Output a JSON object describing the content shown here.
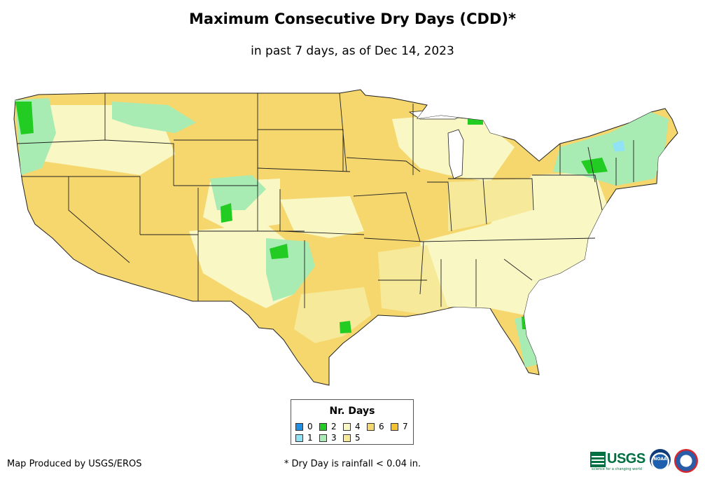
{
  "title": "Maximum Consecutive Dry Days (CDD)*",
  "subtitle": "in past 7 days, as of Dec 14, 2023",
  "legend": {
    "title": "Nr. Days",
    "items": [
      {
        "label": "0",
        "color": "#1e90e6"
      },
      {
        "label": "1",
        "color": "#8fe3f5"
      },
      {
        "label": "2",
        "color": "#22cc22"
      },
      {
        "label": "3",
        "color": "#a8ecb4"
      },
      {
        "label": "4",
        "color": "#f9f7c4"
      },
      {
        "label": "5",
        "color": "#f6e99a"
      },
      {
        "label": "6",
        "color": "#f5d76e"
      },
      {
        "label": "7",
        "color": "#f4c430"
      }
    ]
  },
  "credit": "Map Produced by USGS/EROS",
  "footnote": "* Dry Day is rainfall < 0.04 in.",
  "logos": {
    "usgs": "USGS",
    "usgs_tagline": "science for a changing world",
    "noaa": "NOAA"
  }
}
